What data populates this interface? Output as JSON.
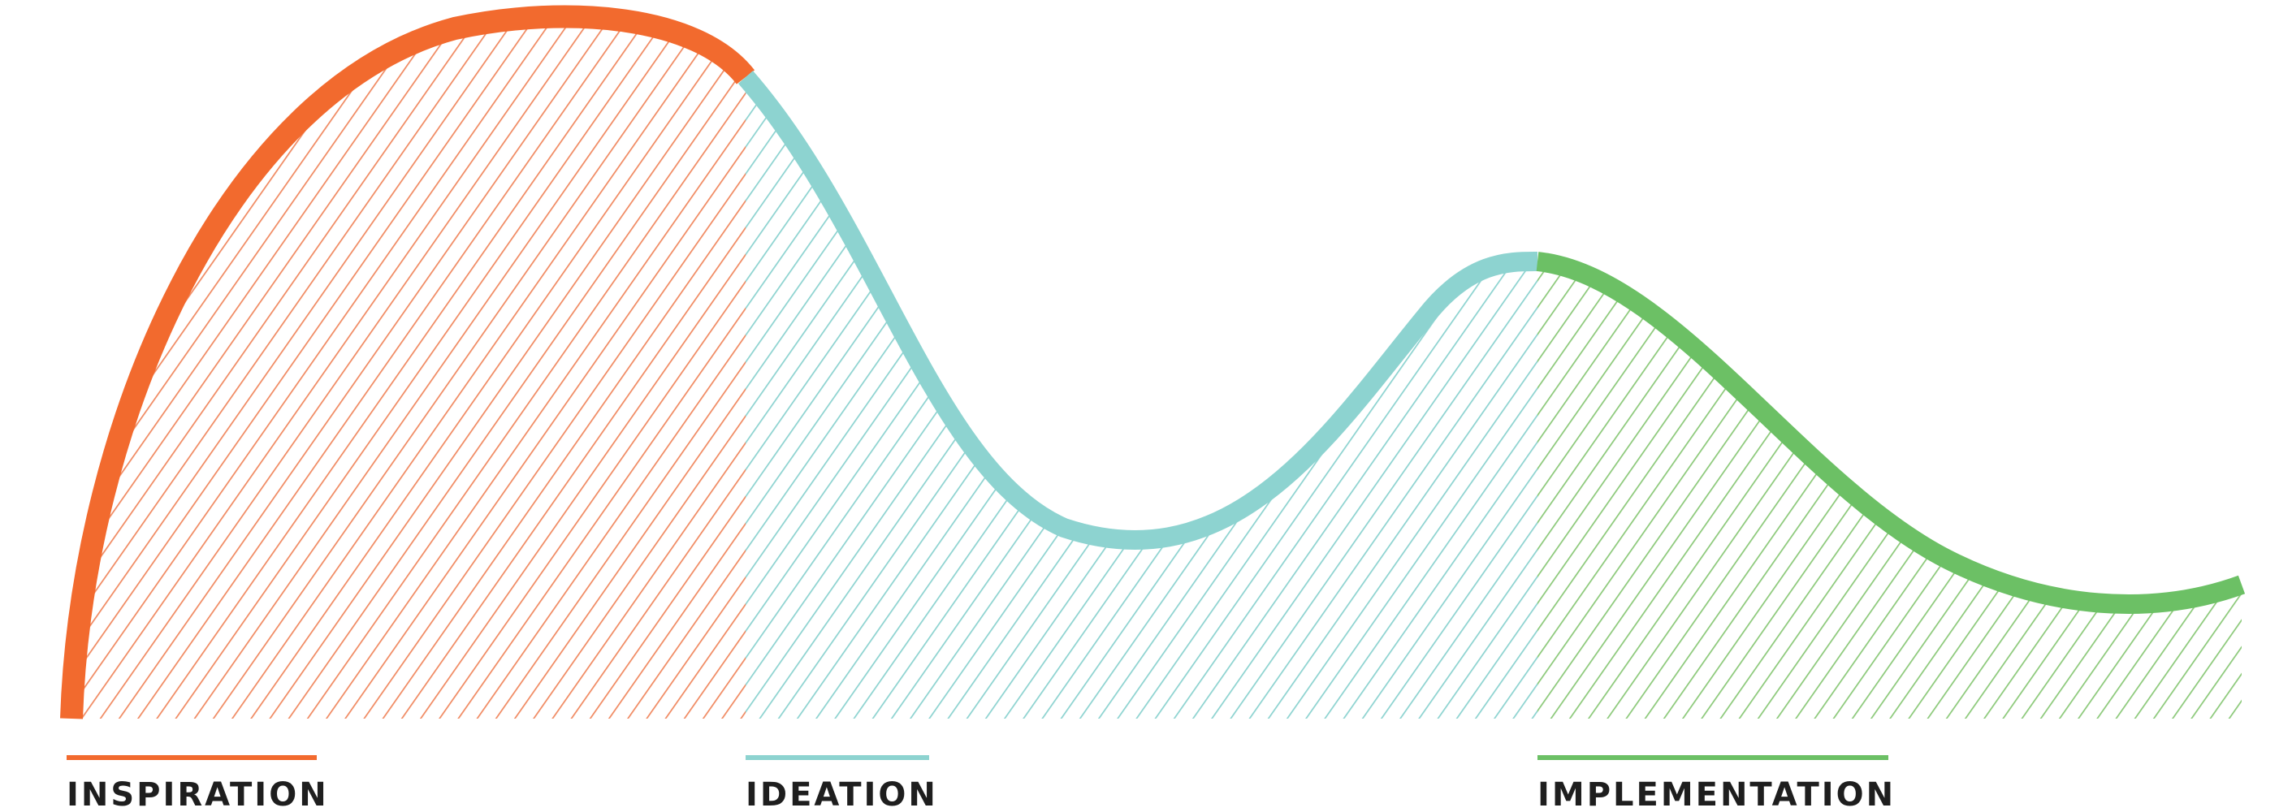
{
  "diagram": {
    "phases": [
      {
        "key": "inspiration",
        "label": "INSPIRATION",
        "color": "#f26a2e",
        "hatch_color": "#f08a62"
      },
      {
        "key": "ideation",
        "label": "IDEATION",
        "color": "#8dd3d0",
        "hatch_color": "#8dd3d0"
      },
      {
        "key": "implementation",
        "label": "IMPLEMENTATION",
        "color": "#6cc065",
        "hatch_color": "#8cc97a"
      }
    ]
  }
}
